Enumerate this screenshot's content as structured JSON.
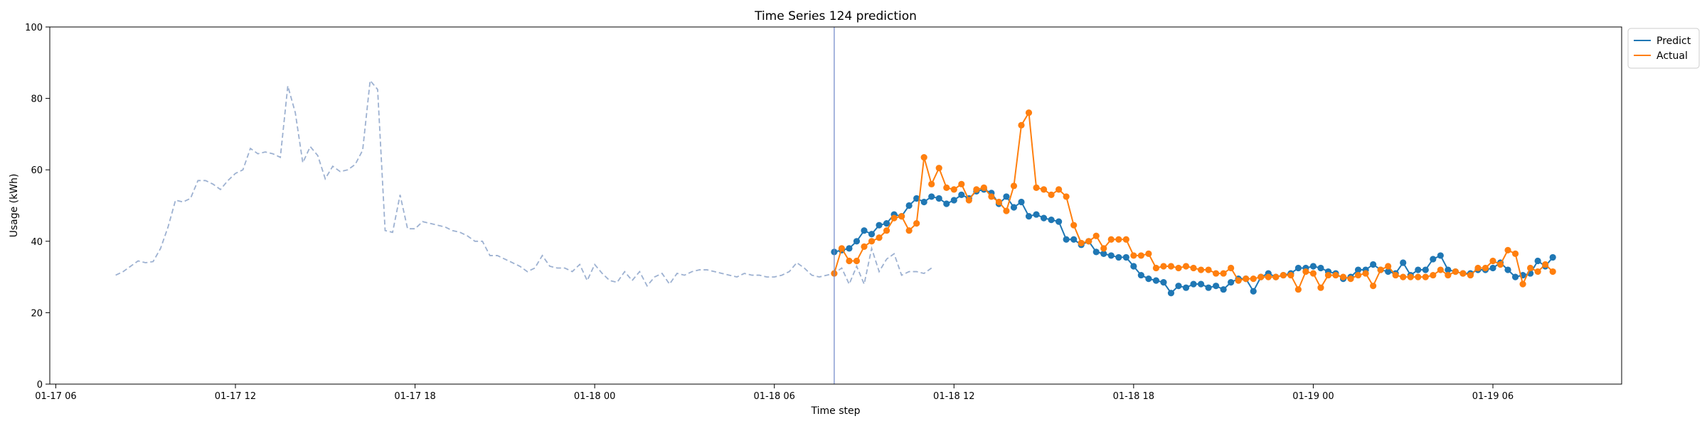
{
  "chart_data": {
    "type": "line",
    "title": "Time Series 124 prediction",
    "xlabel": "Time step",
    "ylabel": "Usage (kWh)",
    "ylim": [
      0,
      100
    ],
    "y_ticks": [
      0,
      20,
      40,
      60,
      80,
      100
    ],
    "x_ticks": [
      {
        "label": "01-17 06",
        "hour": 6
      },
      {
        "label": "01-17 12",
        "hour": 12
      },
      {
        "label": "01-17 18",
        "hour": 18
      },
      {
        "label": "01-18 00",
        "hour": 24
      },
      {
        "label": "01-18 06",
        "hour": 30
      },
      {
        "label": "01-18 12",
        "hour": 36
      },
      {
        "label": "01-18 18",
        "hour": 42
      },
      {
        "label": "01-19 00",
        "hour": 48
      },
      {
        "label": "01-19 06",
        "hour": 54
      }
    ],
    "xlim_hours": [
      5.8,
      58.3
    ],
    "grid": false,
    "legend_position": "outside-top-right",
    "step_minutes": 15,
    "history_start_hour": 8.0,
    "forecast_start_hour": 32.0,
    "series": [
      {
        "name": "",
        "style": "dashed",
        "color": "#9db1d1",
        "values": [
          30.5,
          31.5,
          33.0,
          34.5,
          34.0,
          34.3,
          38.0,
          44.0,
          51.5,
          51.0,
          52.0,
          57.0,
          57.0,
          56.0,
          54.5,
          57.0,
          59.0,
          60.0,
          66.0,
          64.5,
          65.0,
          64.5,
          63.5,
          83.5,
          76.0,
          62.0,
          66.5,
          64.0,
          57.5,
          61.0,
          59.5,
          60.0,
          61.5,
          65.5,
          85.0,
          82.5,
          43.0,
          42.5,
          53.0,
          43.5,
          43.5,
          45.5,
          45.0,
          44.5,
          44.0,
          43.0,
          42.5,
          41.5,
          40.0,
          40.0,
          36.0,
          36.0,
          35.0,
          34.0,
          33.0,
          31.5,
          32.5,
          36.0,
          33.0,
          32.5,
          32.5,
          31.5,
          33.5,
          29.0,
          33.5,
          31.0,
          29.0,
          28.5,
          31.5,
          29.0,
          31.5,
          27.5,
          30.0,
          31.0,
          28.0,
          31.0,
          30.5,
          31.5,
          32.0,
          32.0,
          31.5,
          31.0,
          30.5,
          30.0,
          31.0,
          30.5,
          30.5,
          30.0,
          30.0,
          30.5,
          31.5,
          34.0,
          32.5,
          30.5,
          30.0,
          30.5,
          31.0,
          32.5,
          28.0,
          33.0,
          28.0,
          38.0,
          31.5,
          35.0,
          36.5,
          30.5,
          31.5,
          31.5,
          31.0,
          32.5
        ]
      },
      {
        "name": "Predict",
        "style": "line-markers",
        "color": "#1f77b4",
        "values": [
          37.0,
          37.5,
          38.0,
          40.0,
          43.0,
          42.0,
          44.5,
          45.0,
          47.5,
          47.0,
          50.0,
          52.0,
          51.0,
          52.5,
          52.0,
          50.5,
          51.5,
          53.0,
          52.0,
          54.0,
          54.5,
          53.5,
          50.5,
          52.5,
          49.5,
          51.0,
          47.0,
          47.5,
          46.5,
          46.0,
          45.5,
          40.5,
          40.5,
          39.0,
          40.0,
          37.0,
          36.5,
          36.0,
          35.5,
          35.5,
          33.0,
          30.5,
          29.5,
          29.0,
          28.5,
          25.5,
          27.5,
          27.0,
          28.0,
          28.0,
          27.0,
          27.5,
          26.5,
          28.5,
          29.5,
          29.5,
          26.0,
          30.0,
          31.0,
          30.0,
          30.5,
          31.0,
          32.5,
          32.5,
          33.0,
          32.5,
          31.5,
          31.0,
          29.5,
          30.0,
          32.0,
          32.0,
          33.5,
          32.0,
          31.5,
          31.0,
          34.0,
          30.5,
          32.0,
          32.0,
          35.0,
          36.0,
          32.0,
          31.5,
          31.0,
          31.0,
          32.0,
          32.0,
          32.5,
          34.0,
          32.0,
          30.0,
          30.5,
          31.0,
          34.5,
          33.0,
          35.5
        ]
      },
      {
        "name": "Actual",
        "style": "line-markers",
        "color": "#ff7f0e",
        "values": [
          31.0,
          38.0,
          34.5,
          34.5,
          38.5,
          40.0,
          41.0,
          43.0,
          46.5,
          47.0,
          43.0,
          45.0,
          63.5,
          56.0,
          60.5,
          55.0,
          54.5,
          56.0,
          51.5,
          54.5,
          55.0,
          52.5,
          51.0,
          48.5,
          55.5,
          72.5,
          76.0,
          55.0,
          54.5,
          53.0,
          54.5,
          52.5,
          44.5,
          39.5,
          40.0,
          41.5,
          38.0,
          40.5,
          40.5,
          40.5,
          36.0,
          36.0,
          36.5,
          32.5,
          33.0,
          33.0,
          32.5,
          33.0,
          32.5,
          32.0,
          32.0,
          31.0,
          31.0,
          32.5,
          29.0,
          29.5,
          29.5,
          30.0,
          30.0,
          30.0,
          30.5,
          30.5,
          26.5,
          31.5,
          31.0,
          27.0,
          30.5,
          30.5,
          30.0,
          29.5,
          30.5,
          31.0,
          27.5,
          32.0,
          33.0,
          30.5,
          30.0,
          30.0,
          30.0,
          30.0,
          30.5,
          32.0,
          30.5,
          31.5,
          31.0,
          30.5,
          32.5,
          32.5,
          34.5,
          33.5,
          37.5,
          36.5,
          28.0,
          32.5,
          31.5,
          33.5,
          31.5
        ]
      }
    ]
  }
}
